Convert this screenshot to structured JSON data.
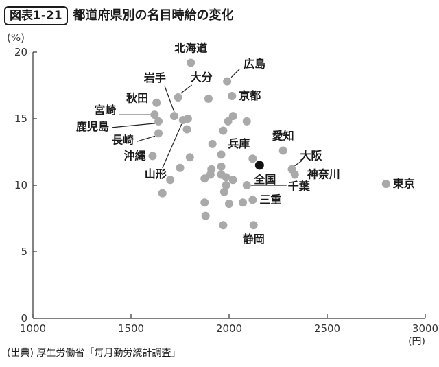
{
  "header": {
    "figure_label": "図表1-21",
    "title": "都道府県別の名目時給の変化"
  },
  "source": "(出典) 厚生労働省「毎月勤労統計調査」",
  "chart_data": {
    "type": "scatter",
    "y_unit": "(%)",
    "x_unit": "(円)",
    "xlim": [
      1000,
      3000
    ],
    "ylim": [
      0,
      20
    ],
    "x_ticks": [
      1000,
      1500,
      2000,
      2500,
      3000
    ],
    "y_ticks": [
      0,
      5,
      10,
      15,
      20
    ],
    "grid": false,
    "colors": {
      "point": "#a9a9a9",
      "highlight": "#111111",
      "axis": "#333333"
    },
    "points": [
      {
        "x": 1805,
        "y": 19.2,
        "label": "北海道"
      },
      {
        "x": 1990,
        "y": 17.8,
        "label": "広島"
      },
      {
        "x": 1740,
        "y": 16.6,
        "label": "大分"
      },
      {
        "x": 1720,
        "y": 15.2,
        "label": "岩手"
      },
      {
        "x": 1630,
        "y": 16.2,
        "label": "秋田"
      },
      {
        "x": 2015,
        "y": 16.7,
        "label": "京都"
      },
      {
        "x": 1895,
        "y": 16.5,
        "label": ""
      },
      {
        "x": 1620,
        "y": 15.3,
        "label": "宮崎"
      },
      {
        "x": 1640,
        "y": 14.8,
        "label": "鹿児島"
      },
      {
        "x": 1765,
        "y": 14.9,
        "label": "山形"
      },
      {
        "x": 1790,
        "y": 15.0,
        "label": ""
      },
      {
        "x": 2020,
        "y": 15.2,
        "label": ""
      },
      {
        "x": 1995,
        "y": 14.8,
        "label": ""
      },
      {
        "x": 2090,
        "y": 14.8,
        "label": ""
      },
      {
        "x": 1640,
        "y": 13.9,
        "label": "長崎"
      },
      {
        "x": 1785,
        "y": 14.2,
        "label": ""
      },
      {
        "x": 1970,
        "y": 14.1,
        "label": ""
      },
      {
        "x": 1610,
        "y": 12.2,
        "label": "沖縄"
      },
      {
        "x": 1915,
        "y": 13.1,
        "label": ""
      },
      {
        "x": 1960,
        "y": 12.3,
        "label": ""
      },
      {
        "x": 1800,
        "y": 12.1,
        "label": ""
      },
      {
        "x": 1750,
        "y": 11.3,
        "label": ""
      },
      {
        "x": 1700,
        "y": 10.4,
        "label": ""
      },
      {
        "x": 1910,
        "y": 11.2,
        "label": ""
      },
      {
        "x": 1960,
        "y": 11.4,
        "label": ""
      },
      {
        "x": 2120,
        "y": 12.0,
        "label": "兵庫"
      },
      {
        "x": 2275,
        "y": 12.6,
        "label": "愛知"
      },
      {
        "x": 2155,
        "y": 11.5,
        "label": "全国",
        "highlight": true
      },
      {
        "x": 2320,
        "y": 11.2,
        "label": "大阪"
      },
      {
        "x": 2335,
        "y": 10.8,
        "label": "神奈川"
      },
      {
        "x": 2800,
        "y": 10.1,
        "label": "東京"
      },
      {
        "x": 1875,
        "y": 10.5,
        "label": ""
      },
      {
        "x": 1905,
        "y": 10.8,
        "label": ""
      },
      {
        "x": 1960,
        "y": 10.8,
        "label": ""
      },
      {
        "x": 1985,
        "y": 10.6,
        "label": ""
      },
      {
        "x": 2020,
        "y": 10.4,
        "label": ""
      },
      {
        "x": 1985,
        "y": 10.0,
        "label": ""
      },
      {
        "x": 1975,
        "y": 9.5,
        "label": ""
      },
      {
        "x": 2090,
        "y": 10.0,
        "label": "千葉"
      },
      {
        "x": 1660,
        "y": 9.4,
        "label": ""
      },
      {
        "x": 2120,
        "y": 8.9,
        "label": "三重"
      },
      {
        "x": 1875,
        "y": 8.7,
        "label": ""
      },
      {
        "x": 2000,
        "y": 8.6,
        "label": ""
      },
      {
        "x": 2070,
        "y": 8.7,
        "label": ""
      },
      {
        "x": 1880,
        "y": 7.7,
        "label": ""
      },
      {
        "x": 1970,
        "y": 7.0,
        "label": ""
      },
      {
        "x": 2125,
        "y": 7.0,
        "label": "静岡"
      }
    ]
  }
}
